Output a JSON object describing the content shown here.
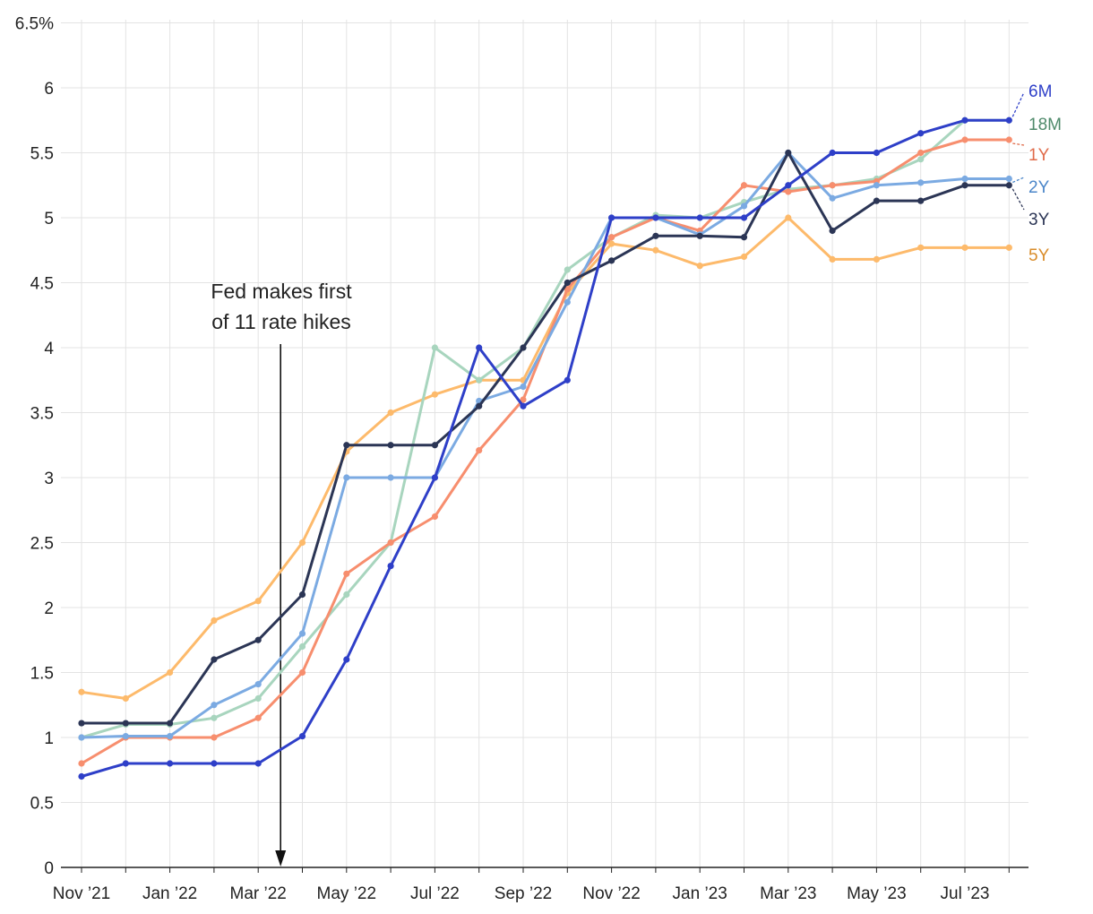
{
  "chart_data": {
    "type": "line",
    "title": "",
    "xlabel": "",
    "ylabel": "",
    "ylim": [
      0,
      6.5
    ],
    "yticks": [
      0,
      0.5,
      1,
      1.5,
      2,
      2.5,
      3,
      3.5,
      4,
      4.5,
      5,
      5.5,
      6,
      6.5
    ],
    "ytick_labels": [
      "0",
      "0.5",
      "1",
      "1.5",
      "2",
      "2.5",
      "3",
      "3.5",
      "4",
      "4.5",
      "5",
      "5.5",
      "6",
      "6.5%"
    ],
    "x": [
      "Nov 2021",
      "Dec 2021",
      "Jan 2022",
      "Feb 2022",
      "Mar 2022",
      "Apr 2022",
      "May 2022",
      "Jun 2022",
      "Jul 2022",
      "Aug 2022",
      "Sep 2022",
      "Oct 2022",
      "Nov 2022",
      "Dec 2022",
      "Jan 2023",
      "Feb 2023",
      "Mar 2023",
      "Apr 2023",
      "May 2023",
      "Jun 2023",
      "Jul 2023",
      "Aug 2023"
    ],
    "xtick_labels": [
      "Nov ’21",
      "Jan ’22",
      "Mar ’22",
      "May ’22",
      "Jul ’22",
      "Sep ’22",
      "Nov ’22",
      "Jan ’23",
      "Mar ’23",
      "May ’23",
      "Jul ’23"
    ],
    "grid": true,
    "legend": "end labels at right",
    "annotation": {
      "lines": [
        "Fed makes first",
        "of 11 rate hikes"
      ],
      "x": "Mar 2022"
    },
    "series": [
      {
        "name": "5Y",
        "color": "#FDBA6B",
        "label_color": "#D98C2A",
        "values": [
          1.35,
          1.3,
          1.5,
          1.9,
          2.05,
          2.5,
          3.2,
          3.5,
          3.64,
          3.75,
          3.75,
          4.42,
          4.8,
          4.75,
          4.63,
          4.7,
          5.0,
          4.68,
          4.68,
          4.77,
          4.77,
          4.77
        ]
      },
      {
        "name": "18M",
        "color": "#A8D5BE",
        "label_color": "#4F8A6B",
        "values": [
          1.0,
          1.1,
          1.1,
          1.15,
          1.3,
          1.7,
          2.1,
          2.5,
          4.0,
          3.75,
          4.0,
          4.6,
          4.85,
          5.02,
          5.0,
          5.12,
          5.22,
          5.25,
          5.3,
          5.45,
          5.75,
          5.75
        ]
      },
      {
        "name": "1Y",
        "color": "#F78E6E",
        "label_color": "#E06B4A",
        "values": [
          0.8,
          1.0,
          1.0,
          1.0,
          1.15,
          1.5,
          2.26,
          2.5,
          2.7,
          3.21,
          3.6,
          4.45,
          4.85,
          5.0,
          4.9,
          5.25,
          5.2,
          5.25,
          5.28,
          5.5,
          5.6,
          5.6
        ]
      },
      {
        "name": "2Y",
        "color": "#7BAAE2",
        "label_color": "#4B86C9",
        "values": [
          1.0,
          1.01,
          1.01,
          1.25,
          1.41,
          1.8,
          3.0,
          3.0,
          3.0,
          3.59,
          3.7,
          4.35,
          5.0,
          5.0,
          4.87,
          5.09,
          5.5,
          5.15,
          5.25,
          5.27,
          5.3,
          5.3
        ]
      },
      {
        "name": "3Y",
        "color": "#2B3555",
        "label_color": "#2B3555",
        "values": [
          1.11,
          1.11,
          1.11,
          1.6,
          1.75,
          2.1,
          3.25,
          3.25,
          3.25,
          3.55,
          4.0,
          4.5,
          4.67,
          4.86,
          4.86,
          4.85,
          5.5,
          4.9,
          5.13,
          5.13,
          5.25,
          5.25
        ]
      },
      {
        "name": "6M",
        "color": "#2E3FC8",
        "label_color": "#2E3FC8",
        "values": [
          0.7,
          0.8,
          0.8,
          0.8,
          0.8,
          1.01,
          1.6,
          2.32,
          3.0,
          4.0,
          3.55,
          3.75,
          5.0,
          5.0,
          5.0,
          5.0,
          5.25,
          5.5,
          5.5,
          5.65,
          5.75,
          5.75
        ]
      }
    ]
  }
}
